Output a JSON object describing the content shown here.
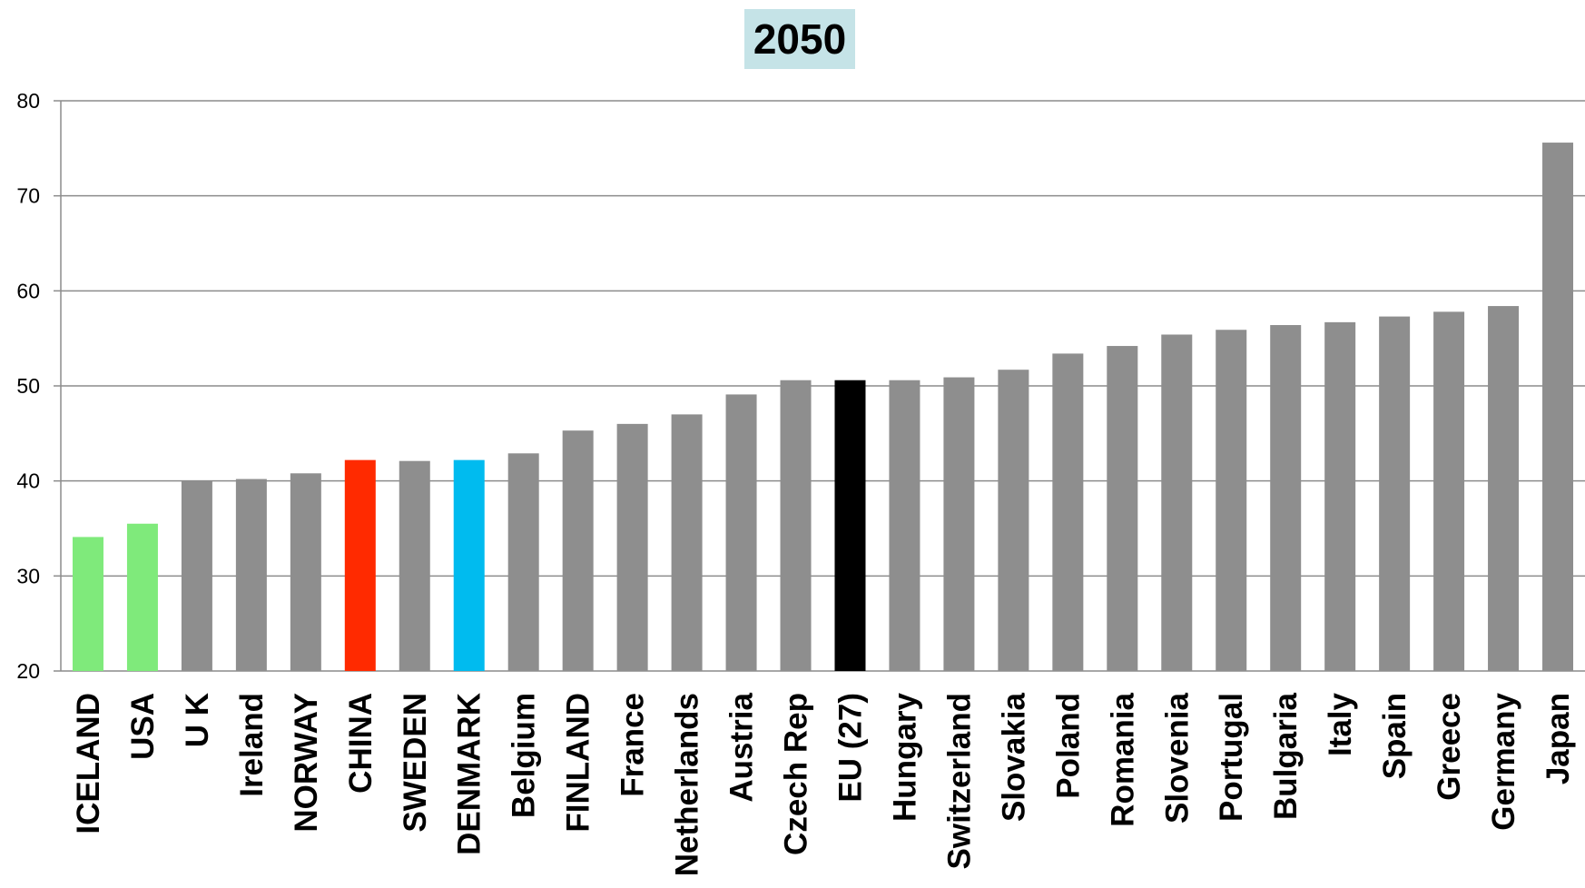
{
  "chart_data": {
    "type": "bar",
    "title": "2050",
    "categories": [
      "ICELAND",
      "USA",
      "U K",
      "Ireland",
      "NORWAY",
      "CHINA",
      "SWEDEN",
      "DENMARK",
      "Belgium",
      "FINLAND",
      "France",
      "Netherlands",
      "Austria",
      "Czech Rep",
      "EU (27)",
      "Hungary",
      "Switzerland",
      "Slovakia",
      "Poland",
      "Romania",
      "Slovenia",
      "Portugal",
      "Bulgaria",
      "Italy",
      "Spain",
      "Greece",
      "Germany",
      "Japan"
    ],
    "values": [
      34.1,
      35.5,
      40.0,
      40.2,
      40.8,
      42.2,
      42.1,
      42.2,
      42.9,
      45.3,
      46.0,
      47.0,
      49.1,
      50.6,
      50.6,
      50.6,
      50.9,
      51.7,
      53.4,
      54.2,
      55.4,
      55.9,
      56.4,
      56.7,
      57.3,
      57.8,
      58.4,
      75.6
    ],
    "colors": [
      "#7fea7b",
      "#7fea7b",
      "#8e8e8e",
      "#8e8e8e",
      "#8e8e8e",
      "#ff2a00",
      "#8e8e8e",
      "#00bbef",
      "#8e8e8e",
      "#8e8e8e",
      "#8e8e8e",
      "#8e8e8e",
      "#8e8e8e",
      "#8e8e8e",
      "#000000",
      "#8e8e8e",
      "#8e8e8e",
      "#8e8e8e",
      "#8e8e8e",
      "#8e8e8e",
      "#8e8e8e",
      "#8e8e8e",
      "#8e8e8e",
      "#8e8e8e",
      "#8e8e8e",
      "#8e8e8e",
      "#8e8e8e",
      "#8e8e8e"
    ],
    "yticks": [
      "20",
      "30",
      "40",
      "50",
      "60",
      "70",
      "80"
    ],
    "ylim": [
      20,
      80
    ],
    "grid": true,
    "xlabel": "",
    "ylabel": ""
  }
}
